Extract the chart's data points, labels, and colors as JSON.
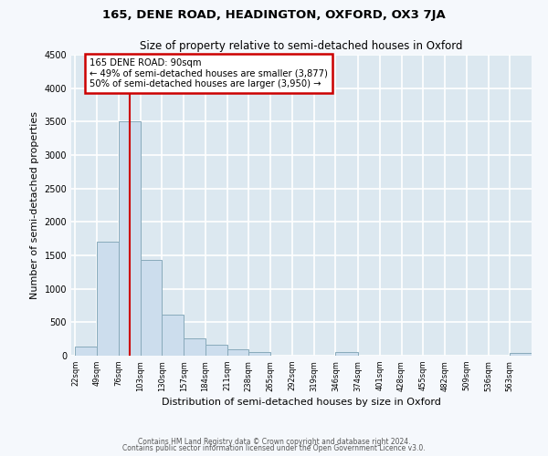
{
  "title": "165, DENE ROAD, HEADINGTON, OXFORD, OX3 7JA",
  "subtitle": "Size of property relative to semi-detached houses in Oxford",
  "xlabel": "Distribution of semi-detached houses by size in Oxford",
  "ylabel": "Number of semi-detached properties",
  "bar_color": "#ccdded",
  "bar_edge_color": "#88aabb",
  "background_color": "#dce8f0",
  "grid_color": "#ffffff",
  "annotation_box_color": "#cc0000",
  "annotation_line_color": "#cc0000",
  "bin_labels": [
    "22sqm",
    "49sqm",
    "76sqm",
    "103sqm",
    "130sqm",
    "157sqm",
    "184sqm",
    "211sqm",
    "238sqm",
    "265sqm",
    "292sqm",
    "319sqm",
    "346sqm",
    "374sqm",
    "401sqm",
    "428sqm",
    "455sqm",
    "482sqm",
    "509sqm",
    "536sqm",
    "563sqm"
  ],
  "bar_values": [
    140,
    1700,
    3500,
    1430,
    620,
    260,
    165,
    95,
    50,
    0,
    0,
    0,
    50,
    0,
    0,
    0,
    0,
    0,
    0,
    0,
    40
  ],
  "bin_edges": [
    22,
    49,
    76,
    103,
    130,
    157,
    184,
    211,
    238,
    265,
    292,
    319,
    346,
    374,
    401,
    428,
    455,
    482,
    509,
    536,
    563,
    590
  ],
  "vline_x": 90,
  "annotation_title": "165 DENE ROAD: 90sqm",
  "annotation_line1": "← 49% of semi-detached houses are smaller (3,877)",
  "annotation_line2": "50% of semi-detached houses are larger (3,950) →",
  "ylim": [
    0,
    4500
  ],
  "yticks": [
    0,
    500,
    1000,
    1500,
    2000,
    2500,
    3000,
    3500,
    4000,
    4500
  ],
  "footer_line1": "Contains HM Land Registry data © Crown copyright and database right 2024.",
  "footer_line2": "Contains public sector information licensed under the Open Government Licence v3.0."
}
